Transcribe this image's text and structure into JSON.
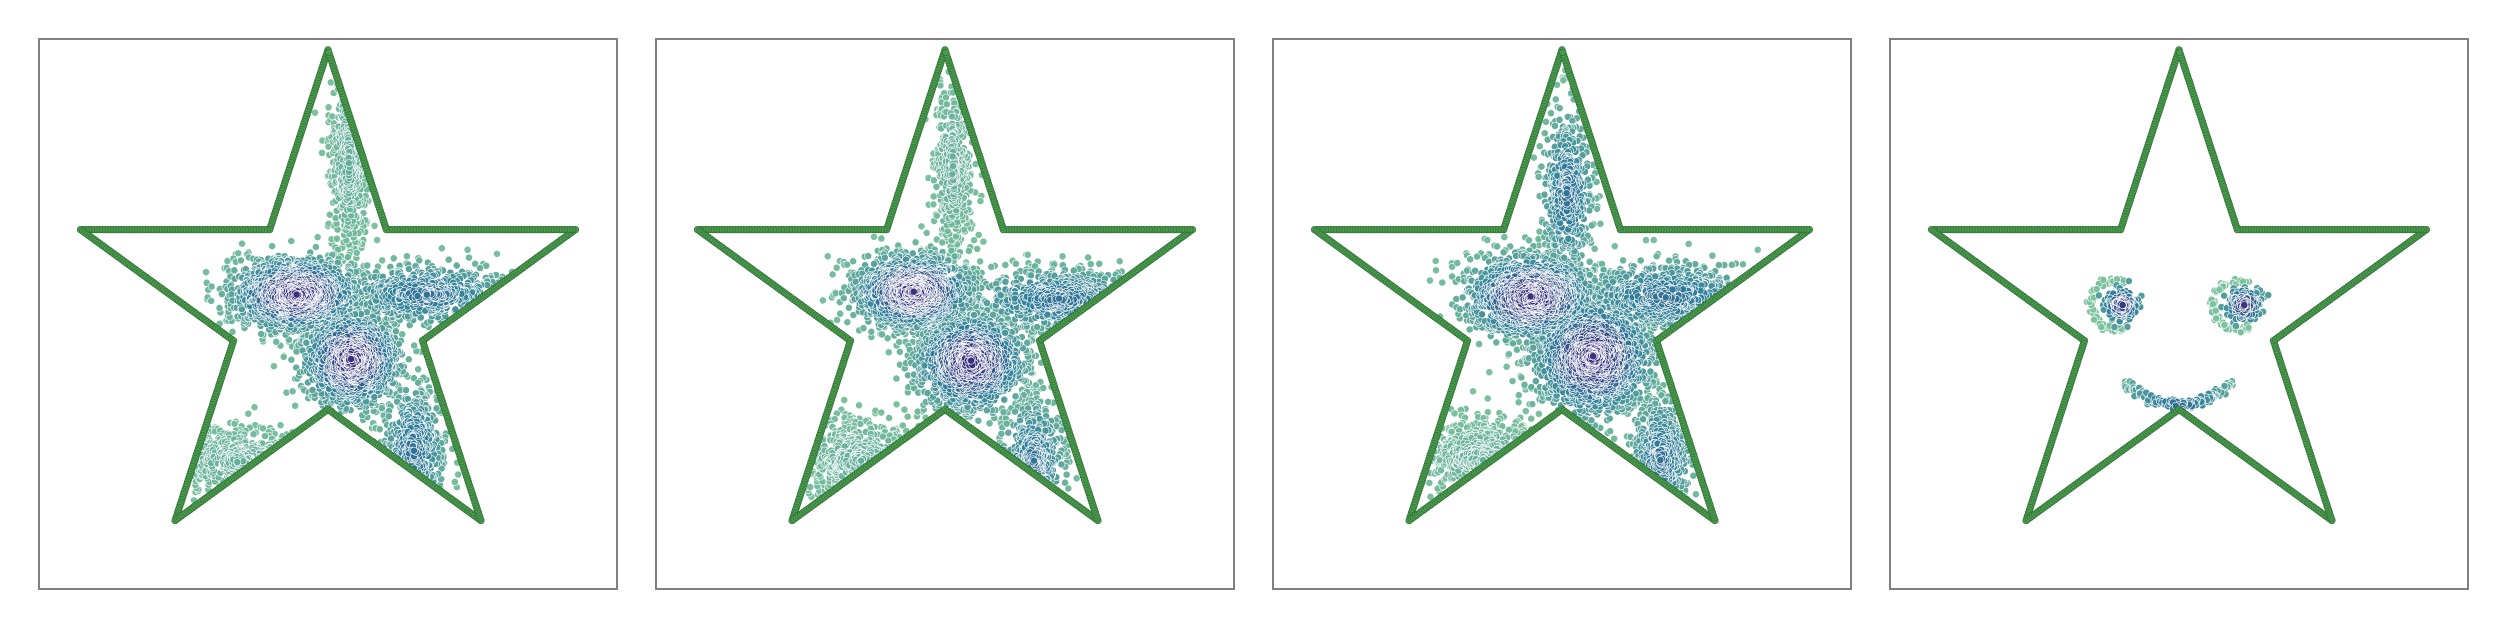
{
  "colors": {
    "boundary": "#4a9a4e",
    "boundary_edge": "#2e6b33",
    "frame": "#808080",
    "density_low": "#8ccf9f",
    "density_mid": "#2f7f9b",
    "density_high": "#3b2c7b"
  },
  "chart_data": [
    {
      "type": "scatter",
      "panel": 1,
      "shape": "five-point star, inner radius ratio 0.382",
      "point_count_estimate": 4500,
      "clusters": [
        {
          "center": [
            -0.12,
            0.06
          ],
          "spread": [
            0.12,
            0.07
          ],
          "weight": 0.34,
          "density": "high"
        },
        {
          "center": [
            0.09,
            -0.19
          ],
          "spread": [
            0.09,
            0.09
          ],
          "weight": 0.28,
          "density": "high"
        },
        {
          "center": [
            0.08,
            0.55
          ],
          "spread": [
            0.04,
            0.18
          ],
          "weight": 0.09,
          "density": "low"
        },
        {
          "center": [
            0.38,
            0.06
          ],
          "spread": [
            0.17,
            0.06
          ],
          "weight": 0.12,
          "density": "mid"
        },
        {
          "center": [
            -0.34,
            -0.58
          ],
          "spread": [
            0.12,
            0.07
          ],
          "weight": 0.08,
          "density": "low"
        },
        {
          "center": [
            0.33,
            -0.54
          ],
          "spread": [
            0.06,
            0.13
          ],
          "weight": 0.09,
          "density": "mid"
        }
      ]
    },
    {
      "type": "scatter",
      "panel": 2,
      "shape": "five-point star, inner radius ratio 0.382",
      "point_count_estimate": 4500,
      "clusters": [
        {
          "center": [
            -0.12,
            0.07
          ],
          "spread": [
            0.11,
            0.07
          ],
          "weight": 0.33,
          "density": "high"
        },
        {
          "center": [
            0.1,
            -0.2
          ],
          "spread": [
            0.1,
            0.09
          ],
          "weight": 0.29,
          "density": "high"
        },
        {
          "center": [
            0.03,
            0.55
          ],
          "spread": [
            0.04,
            0.18
          ],
          "weight": 0.09,
          "density": "low"
        },
        {
          "center": [
            0.44,
            0.04
          ],
          "spread": [
            0.18,
            0.06
          ],
          "weight": 0.12,
          "density": "mid"
        },
        {
          "center": [
            -0.32,
            -0.58
          ],
          "spread": [
            0.12,
            0.08
          ],
          "weight": 0.09,
          "density": "low"
        },
        {
          "center": [
            0.34,
            -0.58
          ],
          "spread": [
            0.06,
            0.12
          ],
          "weight": 0.08,
          "density": "mid"
        }
      ]
    },
    {
      "type": "scatter",
      "panel": 3,
      "shape": "five-point star, inner radius ratio 0.382",
      "point_count_estimate": 5000,
      "clusters": [
        {
          "center": [
            -0.12,
            0.05
          ],
          "spread": [
            0.12,
            0.08
          ],
          "weight": 0.31,
          "density": "high"
        },
        {
          "center": [
            0.12,
            -0.18
          ],
          "spread": [
            0.11,
            0.11
          ],
          "weight": 0.31,
          "density": "high"
        },
        {
          "center": [
            0.02,
            0.45
          ],
          "spread": [
            0.05,
            0.16
          ],
          "weight": 0.1,
          "density": "mid"
        },
        {
          "center": [
            0.4,
            0.05
          ],
          "spread": [
            0.18,
            0.07
          ],
          "weight": 0.12,
          "density": "mid"
        },
        {
          "center": [
            -0.3,
            -0.58
          ],
          "spread": [
            0.12,
            0.08
          ],
          "weight": 0.08,
          "density": "low"
        },
        {
          "center": [
            0.38,
            -0.57
          ],
          "spread": [
            0.06,
            0.12
          ],
          "weight": 0.08,
          "density": "mid"
        }
      ]
    },
    {
      "type": "scatter",
      "panel": 4,
      "shape": "five-point star, inner radius ratio 0.382",
      "point_count_estimate": 900,
      "features": [
        {
          "name": "left-eye",
          "center": [
            -0.22,
            0.02
          ],
          "radius": 0.07
        },
        {
          "name": "right-eye",
          "center": [
            0.25,
            0.02
          ],
          "radius": 0.07
        },
        {
          "name": "smile",
          "center": [
            0.0,
            -0.32
          ],
          "half_width": 0.21,
          "depth": 0.09
        }
      ]
    }
  ]
}
